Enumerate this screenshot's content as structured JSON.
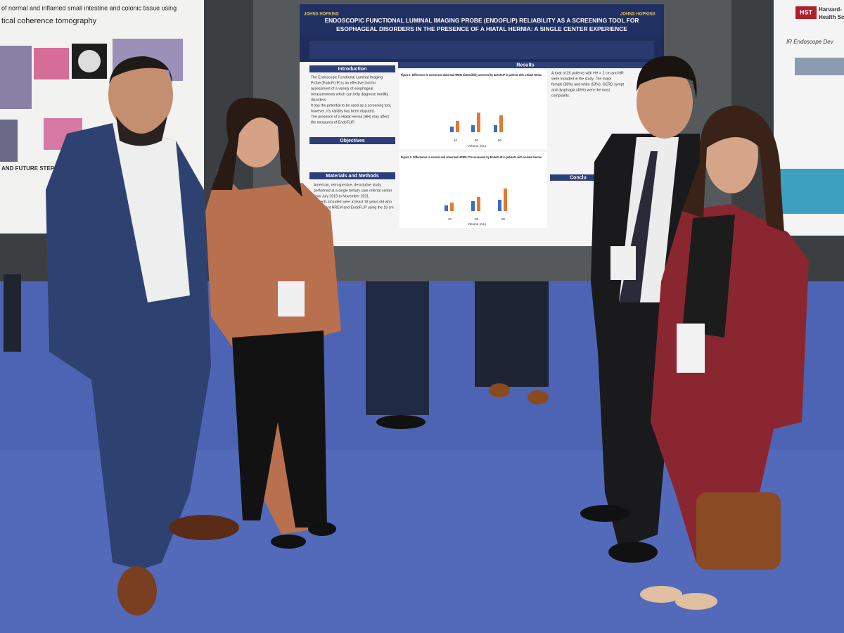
{
  "left_poster": {
    "title_lines": [
      "of normal and inflamed small intestine and colonic tissue using",
      "tical coherence tomography"
    ],
    "heading": "AND FUTURE STEPS"
  },
  "center_poster": {
    "logo": "JOHNS HOPKINS",
    "title_lines": [
      "ENDOSCOPIC FUNCTIONAL LUMINAL IMAGING PROBE (ENDOFLIP) RELIABILITY AS A SCREENING TOOL FOR",
      "ESOPHAGEAL DISORDERS IN THE PRESENCE OF A HIATAL HERNIA: A SINGLE CENTER EXPERIENCE"
    ],
    "sections": {
      "introduction": "Introduction",
      "objectives": "Objectives",
      "methods": "Materials and Methods",
      "results": "Results",
      "conclusion": "Conclu"
    },
    "introduction_lines": [
      "The Endoscopic Functional Luminal Imaging",
      "Probe (EndoFLIP) is an effective tool for",
      "assessment of a variety of esophageal",
      "measurements which can help diagnose motility",
      "disorders.",
      "It has the potential to be used as a screening tool,",
      "however, it's validity has been disputed.",
      "The presence of a Hiatal Hernia (HH) may affect",
      "the measures of EndoFLIP."
    ],
    "methods_lines": [
      "American, retrospective, descriptive study",
      "performed at a single tertiary care referral center",
      "from July 2019 to November 2021.",
      "Patients included were at least 18 years old who",
      "underwent HREM and EndoFLIP using the 16 cm",
      "catheter."
    ],
    "figure1": "Figure 1- Differences in normal and abnormal HREM distensibility assessed by EndoFLIP in patients with a Hiatal Hernia",
    "figure2": "Figure 2- Differences in normal and abnormal HREM CSA assessed by EndoFLIP in patients with a Hiatal Hernia",
    "x_axis": "Volume (mL)",
    "x_ticks": [
      "40",
      "50",
      "60"
    ],
    "results_lines": [
      "A total of 26 patients with HH > 2 cm and HR",
      "were included in the study. The major",
      "female (80%) and white (53%). GERD sympt",
      "and dysphagia (46%) were the most",
      "complaints."
    ]
  },
  "right_poster": {
    "logo": "HST",
    "name_lines": [
      "Harvard-",
      "Health Scien"
    ],
    "heading": "IR Endoscope Dev"
  }
}
